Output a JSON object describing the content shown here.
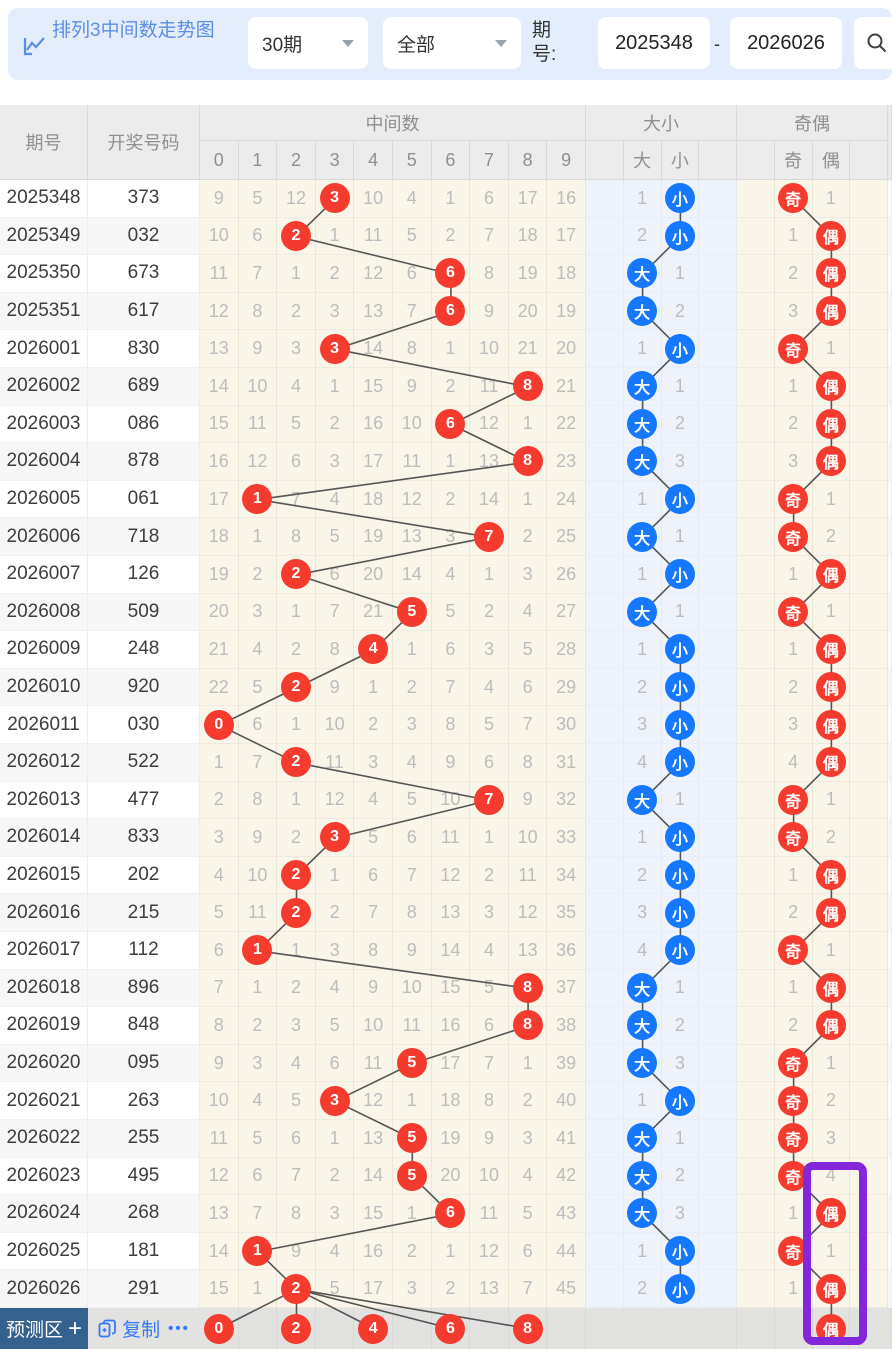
{
  "toolbar": {
    "title": "排列3中间数走势图",
    "period_select": "30期",
    "scope_select": "全部",
    "range_label": "期号:",
    "range_start": "2025348",
    "range_sep": "-",
    "range_end": "2026026",
    "search_label": "查询"
  },
  "table": {
    "headers": {
      "period": "期号",
      "numbers": "开奖号码",
      "middle_group": "中间数",
      "bigsmall_group": "大小",
      "oddeven_group": "奇偶",
      "digits": [
        "0",
        "1",
        "2",
        "3",
        "4",
        "5",
        "6",
        "7",
        "8",
        "9"
      ],
      "big": "大",
      "small": "小",
      "odd": "奇",
      "even": "偶"
    },
    "rows": [
      {
        "period": "2025348",
        "numbers": "373",
        "cells": [
          9,
          5,
          12,
          3,
          10,
          4,
          1,
          6,
          17,
          16
        ],
        "hit": 3,
        "bs_hit": "small",
        "bs_miss": 1,
        "oe_hit": "odd",
        "oe_miss": 1
      },
      {
        "period": "2025349",
        "numbers": "032",
        "cells": [
          10,
          6,
          2,
          1,
          11,
          5,
          2,
          7,
          18,
          17
        ],
        "hit": 2,
        "bs_hit": "small",
        "bs_miss": 2,
        "oe_hit": "even",
        "oe_miss": 1
      },
      {
        "period": "2025350",
        "numbers": "673",
        "cells": [
          11,
          7,
          1,
          2,
          12,
          6,
          6,
          8,
          19,
          18
        ],
        "hit": 6,
        "bs_hit": "big",
        "bs_miss": 1,
        "oe_hit": "even",
        "oe_miss": 2
      },
      {
        "period": "2025351",
        "numbers": "617",
        "cells": [
          12,
          8,
          2,
          3,
          13,
          7,
          6,
          9,
          20,
          19
        ],
        "hit": 6,
        "bs_hit": "big",
        "bs_miss": 2,
        "oe_hit": "even",
        "oe_miss": 3
      },
      {
        "period": "2026001",
        "numbers": "830",
        "cells": [
          13,
          9,
          3,
          3,
          14,
          8,
          1,
          10,
          21,
          20
        ],
        "hit": 3,
        "bs_hit": "small",
        "bs_miss": 1,
        "oe_hit": "odd",
        "oe_miss": 1
      },
      {
        "period": "2026002",
        "numbers": "689",
        "cells": [
          14,
          10,
          4,
          1,
          15,
          9,
          2,
          11,
          8,
          21
        ],
        "hit": 8,
        "bs_hit": "big",
        "bs_miss": 1,
        "oe_hit": "even",
        "oe_miss": 1
      },
      {
        "period": "2026003",
        "numbers": "086",
        "cells": [
          15,
          11,
          5,
          2,
          16,
          10,
          6,
          12,
          1,
          22
        ],
        "hit": 6,
        "bs_hit": "big",
        "bs_miss": 2,
        "oe_hit": "even",
        "oe_miss": 2
      },
      {
        "period": "2026004",
        "numbers": "878",
        "cells": [
          16,
          12,
          6,
          3,
          17,
          11,
          1,
          13,
          8,
          23
        ],
        "hit": 8,
        "bs_hit": "big",
        "bs_miss": 3,
        "oe_hit": "even",
        "oe_miss": 3
      },
      {
        "period": "2026005",
        "numbers": "061",
        "cells": [
          17,
          1,
          7,
          4,
          18,
          12,
          2,
          14,
          1,
          24
        ],
        "hit": 1,
        "bs_hit": "small",
        "bs_miss": 1,
        "oe_hit": "odd",
        "oe_miss": 1
      },
      {
        "period": "2026006",
        "numbers": "718",
        "cells": [
          18,
          1,
          8,
          5,
          19,
          13,
          3,
          7,
          2,
          25
        ],
        "hit": 7,
        "bs_hit": "big",
        "bs_miss": 1,
        "oe_hit": "odd",
        "oe_miss": 2
      },
      {
        "period": "2026007",
        "numbers": "126",
        "cells": [
          19,
          2,
          2,
          6,
          20,
          14,
          4,
          1,
          3,
          26
        ],
        "hit": 2,
        "bs_hit": "small",
        "bs_miss": 1,
        "oe_hit": "even",
        "oe_miss": 1
      },
      {
        "period": "2026008",
        "numbers": "509",
        "cells": [
          20,
          3,
          1,
          7,
          21,
          5,
          5,
          2,
          4,
          27
        ],
        "hit": 5,
        "bs_hit": "big",
        "bs_miss": 1,
        "oe_hit": "odd",
        "oe_miss": 1
      },
      {
        "period": "2026009",
        "numbers": "248",
        "cells": [
          21,
          4,
          2,
          8,
          4,
          1,
          6,
          3,
          5,
          28
        ],
        "hit": 4,
        "bs_hit": "small",
        "bs_miss": 1,
        "oe_hit": "even",
        "oe_miss": 1
      },
      {
        "period": "2026010",
        "numbers": "920",
        "cells": [
          22,
          5,
          2,
          9,
          1,
          2,
          7,
          4,
          6,
          29
        ],
        "hit": 2,
        "bs_hit": "small",
        "bs_miss": 2,
        "oe_hit": "even",
        "oe_miss": 2
      },
      {
        "period": "2026011",
        "numbers": "030",
        "cells": [
          0,
          6,
          1,
          10,
          2,
          3,
          8,
          5,
          7,
          30
        ],
        "hit": 0,
        "bs_hit": "small",
        "bs_miss": 3,
        "oe_hit": "even",
        "oe_miss": 3
      },
      {
        "period": "2026012",
        "numbers": "522",
        "cells": [
          1,
          7,
          2,
          11,
          3,
          4,
          9,
          6,
          8,
          31
        ],
        "hit": 2,
        "bs_hit": "small",
        "bs_miss": 4,
        "oe_hit": "even",
        "oe_miss": 4
      },
      {
        "period": "2026013",
        "numbers": "477",
        "cells": [
          2,
          8,
          1,
          12,
          4,
          5,
          10,
          7,
          9,
          32
        ],
        "hit": 7,
        "bs_hit": "big",
        "bs_miss": 1,
        "oe_hit": "odd",
        "oe_miss": 1
      },
      {
        "period": "2026014",
        "numbers": "833",
        "cells": [
          3,
          9,
          2,
          3,
          5,
          6,
          11,
          1,
          10,
          33
        ],
        "hit": 3,
        "bs_hit": "small",
        "bs_miss": 1,
        "oe_hit": "odd",
        "oe_miss": 2
      },
      {
        "period": "2026015",
        "numbers": "202",
        "cells": [
          4,
          10,
          2,
          1,
          6,
          7,
          12,
          2,
          11,
          34
        ],
        "hit": 2,
        "bs_hit": "small",
        "bs_miss": 2,
        "oe_hit": "even",
        "oe_miss": 1
      },
      {
        "period": "2026016",
        "numbers": "215",
        "cells": [
          5,
          11,
          2,
          2,
          7,
          8,
          13,
          3,
          12,
          35
        ],
        "hit": 2,
        "bs_hit": "small",
        "bs_miss": 3,
        "oe_hit": "even",
        "oe_miss": 2
      },
      {
        "period": "2026017",
        "numbers": "112",
        "cells": [
          6,
          1,
          1,
          3,
          8,
          9,
          14,
          4,
          13,
          36
        ],
        "hit": 1,
        "bs_hit": "small",
        "bs_miss": 4,
        "oe_hit": "odd",
        "oe_miss": 1
      },
      {
        "period": "2026018",
        "numbers": "896",
        "cells": [
          7,
          1,
          2,
          4,
          9,
          10,
          15,
          5,
          8,
          37
        ],
        "hit": 8,
        "bs_hit": "big",
        "bs_miss": 1,
        "oe_hit": "even",
        "oe_miss": 1
      },
      {
        "period": "2026019",
        "numbers": "848",
        "cells": [
          8,
          2,
          3,
          5,
          10,
          11,
          16,
          6,
          8,
          38
        ],
        "hit": 8,
        "bs_hit": "big",
        "bs_miss": 2,
        "oe_hit": "even",
        "oe_miss": 2
      },
      {
        "period": "2026020",
        "numbers": "095",
        "cells": [
          9,
          3,
          4,
          6,
          11,
          5,
          17,
          7,
          1,
          39
        ],
        "hit": 5,
        "bs_hit": "big",
        "bs_miss": 3,
        "oe_hit": "odd",
        "oe_miss": 1
      },
      {
        "period": "2026021",
        "numbers": "263",
        "cells": [
          10,
          4,
          5,
          3,
          12,
          1,
          18,
          8,
          2,
          40
        ],
        "hit": 3,
        "bs_hit": "small",
        "bs_miss": 1,
        "oe_hit": "odd",
        "oe_miss": 2
      },
      {
        "period": "2026022",
        "numbers": "255",
        "cells": [
          11,
          5,
          6,
          1,
          13,
          5,
          19,
          9,
          3,
          41
        ],
        "hit": 5,
        "bs_hit": "big",
        "bs_miss": 1,
        "oe_hit": "odd",
        "oe_miss": 3
      },
      {
        "period": "2026023",
        "numbers": "495",
        "cells": [
          12,
          6,
          7,
          2,
          14,
          5,
          20,
          10,
          4,
          42
        ],
        "hit": 5,
        "bs_hit": "big",
        "bs_miss": 2,
        "oe_hit": "odd",
        "oe_miss": 4
      },
      {
        "period": "2026024",
        "numbers": "268",
        "cells": [
          13,
          7,
          8,
          3,
          15,
          1,
          6,
          11,
          5,
          43
        ],
        "hit": 6,
        "bs_hit": "big",
        "bs_miss": 3,
        "oe_hit": "even",
        "oe_miss": 1
      },
      {
        "period": "2026025",
        "numbers": "181",
        "cells": [
          14,
          1,
          9,
          4,
          16,
          2,
          1,
          12,
          6,
          44
        ],
        "hit": 1,
        "bs_hit": "small",
        "bs_miss": 1,
        "oe_hit": "odd",
        "oe_miss": 1
      },
      {
        "period": "2026026",
        "numbers": "291",
        "cells": [
          15,
          1,
          2,
          5,
          17,
          3,
          2,
          13,
          7,
          45
        ],
        "hit": 2,
        "bs_hit": "small",
        "bs_miss": 2,
        "oe_hit": "even",
        "oe_miss": 1
      }
    ],
    "prediction": {
      "label": "预测区",
      "add_label": "+",
      "copy_label": "复制",
      "more_label": "•••",
      "digits": [
        0,
        2,
        4,
        6,
        8
      ],
      "even_circle": "偶"
    }
  },
  "annotation": {
    "shape": "rounded-rect",
    "color": "#8426d9",
    "highlights": "偶 column, rows 2026023–2026026 and prediction row"
  },
  "colors": {
    "hit_red": "#f53b2e",
    "hit_blue": "#1677ff",
    "line": "#555555",
    "annotation_purple": "#8426d9",
    "panel_blue": "#e3edfc",
    "title_blue": "#5a8de8",
    "link_blue": "#3479f6",
    "pred_label_bg": "#35618e",
    "cream_bg": "#faf5e9",
    "bigsmall_bg": "#eef3fb",
    "header_bg": "#ececec"
  }
}
